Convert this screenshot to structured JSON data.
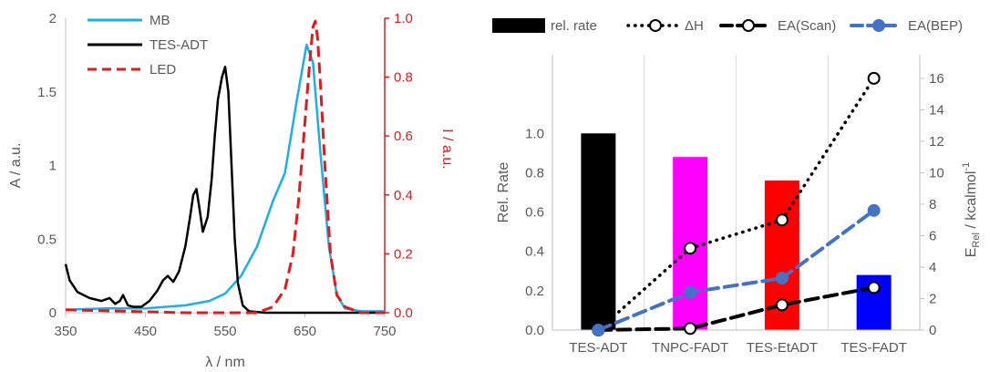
{
  "chart_data": [
    {
      "type": "line",
      "xlabel": "λ / nm",
      "ylabel": "A / a.u.",
      "y2label": "I / a.u.",
      "xlim": [
        350,
        750
      ],
      "ylim": [
        0,
        2
      ],
      "y2lim": [
        0,
        1
      ],
      "xticks": [
        "350",
        "450",
        "550",
        "650",
        "750"
      ],
      "yticks": [
        "0",
        "0.5",
        "1",
        "1.5",
        "2"
      ],
      "y2ticks": [
        "0.0",
        "0.2",
        "0.4",
        "0.6",
        "0.8",
        "1.0"
      ],
      "legend_position": "top-left",
      "grid": false,
      "series": [
        {
          "name": "MB",
          "axis": "left",
          "color": "#1ab0e6",
          "style": "solid",
          "x": [
            350,
            400,
            450,
            500,
            530,
            550,
            570,
            590,
            610,
            625,
            640,
            652,
            660,
            670,
            680,
            690,
            700,
            720,
            750
          ],
          "y": [
            0.02,
            0.03,
            0.03,
            0.05,
            0.08,
            0.13,
            0.25,
            0.45,
            0.76,
            0.95,
            1.45,
            1.82,
            1.7,
            1.05,
            0.45,
            0.12,
            0.03,
            0.01,
            0.01
          ]
        },
        {
          "name": "TES-ADT",
          "axis": "left",
          "color": "#000000",
          "style": "solid",
          "x": [
            350,
            355,
            365,
            380,
            395,
            405,
            412,
            418,
            422,
            428,
            435,
            445,
            455,
            465,
            472,
            478,
            485,
            492,
            500,
            506,
            510,
            514,
            518,
            522,
            528,
            533,
            537,
            541,
            546,
            550,
            554,
            558,
            562,
            566,
            572,
            580,
            600,
            750
          ],
          "y": [
            0.33,
            0.22,
            0.14,
            0.1,
            0.08,
            0.1,
            0.06,
            0.08,
            0.12,
            0.05,
            0.04,
            0.04,
            0.08,
            0.15,
            0.22,
            0.25,
            0.21,
            0.28,
            0.45,
            0.65,
            0.8,
            0.84,
            0.7,
            0.55,
            0.65,
            0.9,
            1.2,
            1.45,
            1.6,
            1.67,
            1.5,
            1.0,
            0.5,
            0.2,
            0.05,
            0.01,
            0.0,
            0.0
          ]
        },
        {
          "name": "LED",
          "axis": "right",
          "color": "#e31a1c",
          "style": "dashed",
          "x": [
            350,
            500,
            590,
            610,
            625,
            635,
            642,
            648,
            653,
            657,
            660,
            663,
            666,
            670,
            675,
            682,
            690,
            700,
            720,
            750
          ],
          "y": [
            0.01,
            0.0,
            0.0,
            0.02,
            0.08,
            0.2,
            0.38,
            0.58,
            0.75,
            0.88,
            0.97,
            0.99,
            0.93,
            0.75,
            0.5,
            0.2,
            0.06,
            0.02,
            0.0,
            0.0
          ]
        }
      ]
    },
    {
      "type": "bar",
      "categories": [
        "TES-ADT",
        "TNPC-FADT",
        "TES-EtADT",
        "TES-FADT"
      ],
      "ylabel": "Rel. Rate",
      "y2label_main": "E",
      "y2label_sub": "Rel",
      "y2label_rest": " / kcalmol",
      "y2label_sup": "-1",
      "ylim": [
        0,
        1.4
      ],
      "y2lim": [
        0,
        17.5
      ],
      "yticks": [
        "0.0",
        "0.2",
        "0.4",
        "0.6",
        "0.8",
        "1.0"
      ],
      "y2ticks": [
        "0",
        "2",
        "4",
        "6",
        "8",
        "10",
        "12",
        "14",
        "16"
      ],
      "legend_position": "top",
      "grid": "vertical",
      "bars": {
        "name": "rel. rate",
        "values": [
          1.0,
          0.88,
          0.76,
          0.28
        ],
        "colors": [
          "#000000",
          "#ff00ff",
          "#ff0000",
          "#0000ff"
        ]
      },
      "series": [
        {
          "name": "ΔH",
          "axis": "right",
          "style": "dotted",
          "marker": "open-circle",
          "color": "#000000",
          "values": [
            0.0,
            5.2,
            7.0,
            16.0
          ]
        },
        {
          "name": "EA(Scan)",
          "axis": "right",
          "style": "dashed",
          "marker": "open-circle",
          "color": "#000000",
          "values": [
            0.0,
            0.1,
            1.6,
            2.7
          ]
        },
        {
          "name": "EA(BEP)",
          "axis": "right",
          "style": "dashed",
          "marker": "filled-circle",
          "color": "#4472c4",
          "values": [
            0.0,
            2.4,
            3.3,
            7.6
          ]
        }
      ]
    }
  ]
}
